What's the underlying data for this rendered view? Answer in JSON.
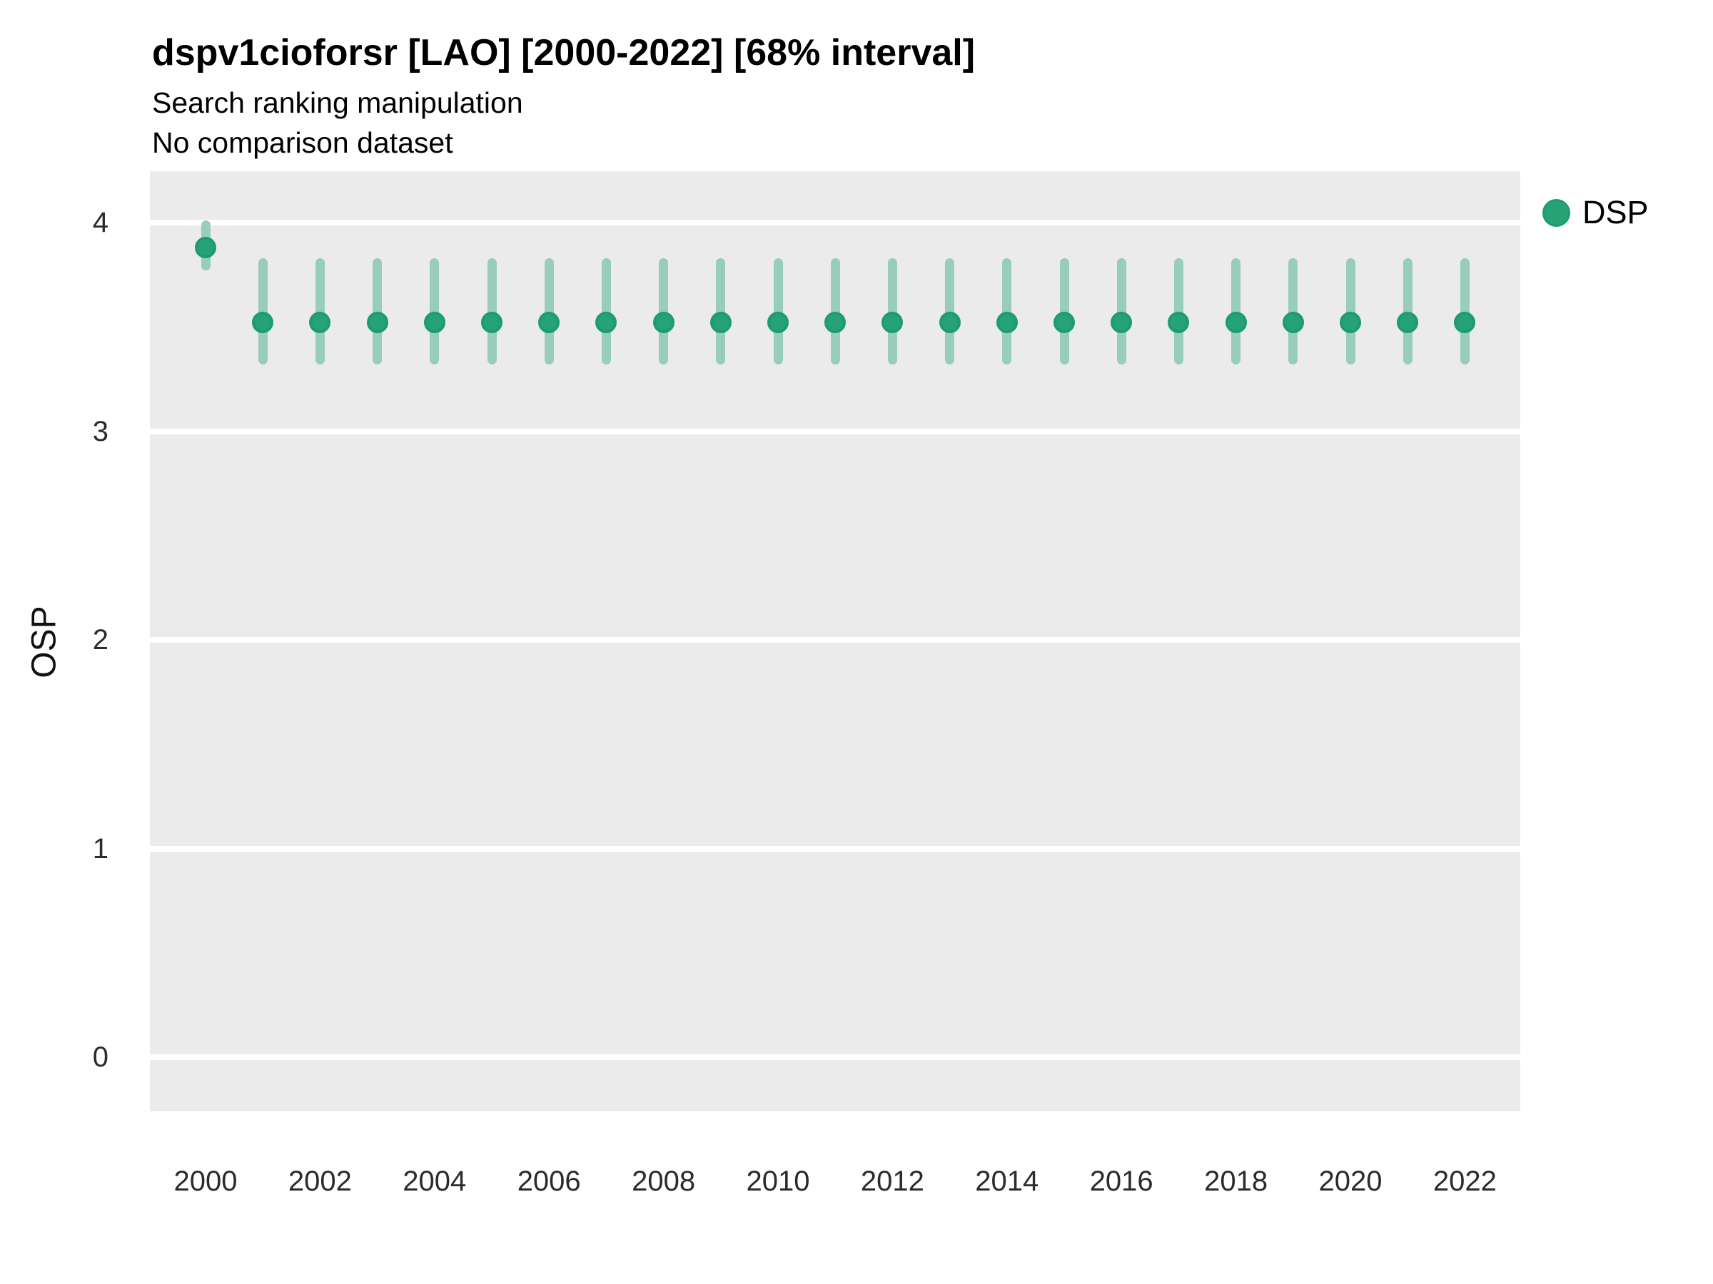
{
  "header": {
    "title": "dspv1cioforsr [LAO] [2000-2022] [68% interval]",
    "subtitle": "Search ranking manipulation",
    "note": "No comparison dataset"
  },
  "colors": {
    "panel_background": "#EBEBEB",
    "gridline": "#FFFFFF",
    "point_fill": "#26A277",
    "point_ring": "#1E9B70",
    "interval_bar": "#98CEB9",
    "title_text": "#000000",
    "axis_text": "#2B2B2B"
  },
  "chart_data": {
    "type": "scatter",
    "subtype": "pointrange",
    "title": "dspv1cioforsr [LAO] [2000-2022] [68% interval]",
    "subtitle": "Search ranking manipulation",
    "note": "No comparison dataset",
    "xlabel": "",
    "ylabel": "OSP",
    "interval_level": "68%",
    "grid": "major y gridlines, white on grey panel, no minor grid, no tick marks",
    "legend_position": "right-top",
    "legend": [
      {
        "label": "DSP",
        "color": "#26A277"
      }
    ],
    "ylim": [
      -0.27,
      4.25
    ],
    "yticks": [
      0,
      1,
      2,
      3,
      4
    ],
    "xticks": [
      2000,
      2002,
      2004,
      2006,
      2008,
      2010,
      2012,
      2014,
      2016,
      2018,
      2020,
      2022
    ],
    "series": [
      {
        "name": "DSP",
        "x": [
          2000,
          2001,
          2002,
          2003,
          2004,
          2005,
          2006,
          2007,
          2008,
          2009,
          2010,
          2011,
          2012,
          2013,
          2014,
          2015,
          2016,
          2017,
          2018,
          2019,
          2020,
          2021,
          2022
        ],
        "median": [
          3.88,
          3.52,
          3.52,
          3.52,
          3.52,
          3.52,
          3.52,
          3.52,
          3.52,
          3.52,
          3.52,
          3.52,
          3.52,
          3.52,
          3.52,
          3.52,
          3.52,
          3.52,
          3.52,
          3.52,
          3.52,
          3.52,
          3.52
        ],
        "lower": [
          3.77,
          3.32,
          3.32,
          3.32,
          3.32,
          3.32,
          3.32,
          3.32,
          3.32,
          3.32,
          3.32,
          3.32,
          3.32,
          3.32,
          3.32,
          3.32,
          3.32,
          3.32,
          3.32,
          3.32,
          3.32,
          3.32,
          3.32
        ],
        "upper": [
          4.01,
          3.83,
          3.83,
          3.83,
          3.83,
          3.83,
          3.83,
          3.83,
          3.83,
          3.83,
          3.83,
          3.83,
          3.83,
          3.83,
          3.83,
          3.83,
          3.83,
          3.83,
          3.83,
          3.83,
          3.83,
          3.83,
          3.83
        ]
      }
    ]
  }
}
